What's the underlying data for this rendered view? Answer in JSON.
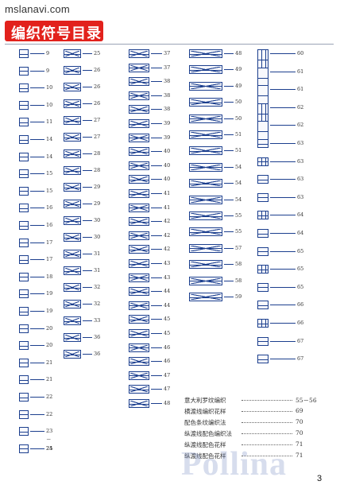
{
  "site": "mslanavi.com",
  "title": "编织符号目录",
  "page_number": "3",
  "watermark": "Pollina",
  "columns": [
    [
      "9",
      "9",
      "10",
      "10",
      "11",
      "14",
      "14",
      "15",
      "15",
      "16",
      "16",
      "17",
      "17",
      "18",
      "19",
      "19",
      "20",
      "20",
      "21",
      "21",
      "22",
      "22",
      "23－24",
      "25"
    ],
    [
      "25",
      "26",
      "26",
      "26",
      "27",
      "27",
      "28",
      "28",
      "29",
      "29",
      "30",
      "30",
      "31",
      "31",
      "32",
      "32",
      "33",
      "36",
      "36"
    ],
    [
      "37",
      "37",
      "38",
      "38",
      "38",
      "39",
      "39",
      "40",
      "40",
      "40",
      "41",
      "41",
      "42",
      "42",
      "42",
      "43",
      "43",
      "44",
      "44",
      "45",
      "45",
      "46",
      "46",
      "47",
      "47",
      "48"
    ],
    [
      "48",
      "49",
      "49",
      "50",
      "50",
      "51",
      "51",
      "54",
      "54",
      "54",
      "55",
      "55",
      "57",
      "58",
      "58",
      "59"
    ],
    [
      "60",
      "61",
      "61",
      "62",
      "62",
      "63",
      "63",
      "63",
      "63",
      "64",
      "64",
      "65",
      "65",
      "65",
      "66",
      "66",
      "67",
      "67"
    ]
  ],
  "legend": [
    {
      "label": "意大利罗纹编织",
      "pages": "55－56"
    },
    {
      "label": "横渡线编织花样",
      "pages": "69"
    },
    {
      "label": "配色条纹编织法",
      "pages": "70"
    },
    {
      "label": "纵渡线配色编织法",
      "pages": "70"
    },
    {
      "label": "纵渡线配色花样",
      "pages": "71"
    },
    {
      "label": "纵渡线配色花样",
      "pages": "71"
    }
  ]
}
